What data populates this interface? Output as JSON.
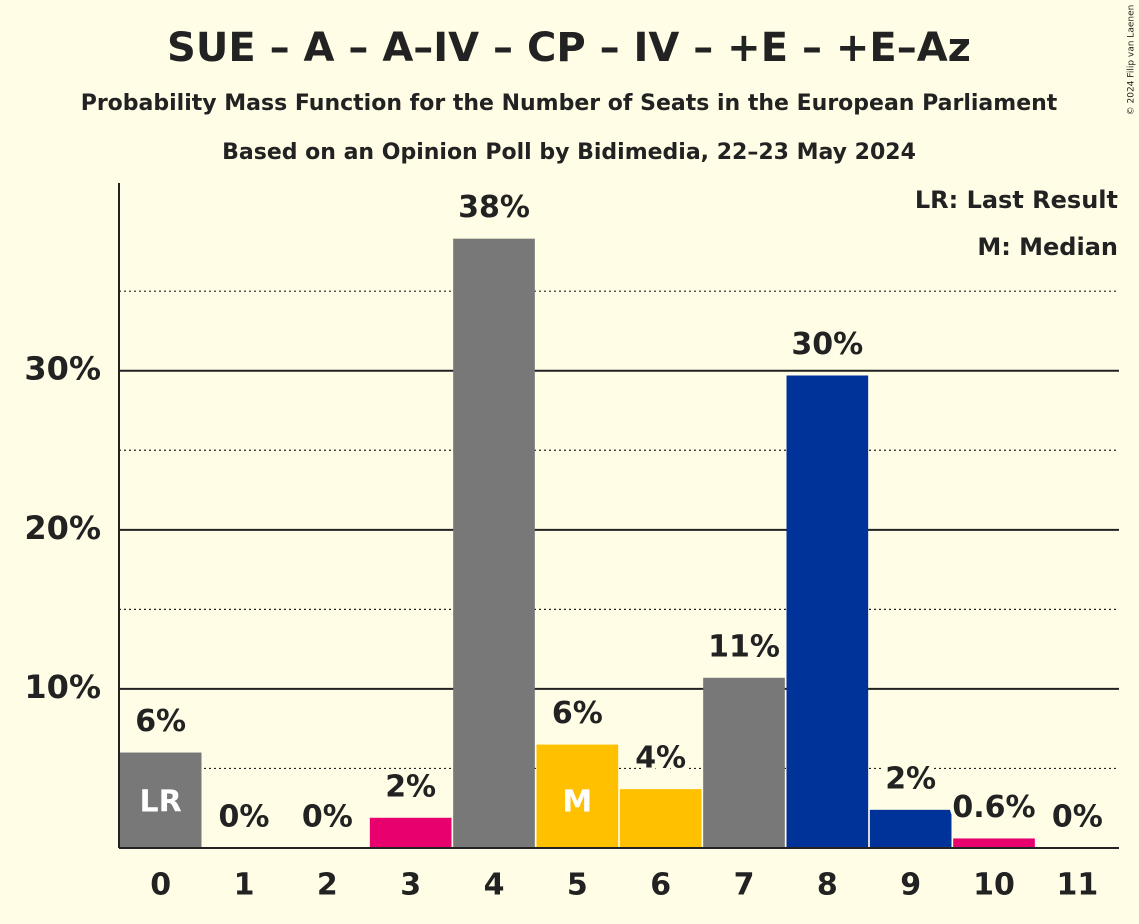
{
  "chart_data": {
    "type": "bar",
    "title": "SUE – A – A–IV – CP – IV – +E – +E–Az",
    "subtitle": "Probability Mass Function for the Number of Seats in the European Parliament",
    "subtitle2": "Based on an Opinion Poll by Bidimedia, 22–23 May 2024",
    "copyright": "© 2024 Filip van Laenen",
    "legend": [
      "LR: Last Result",
      "M: Median"
    ],
    "legend_position": "top-right",
    "categories": [
      "0",
      "1",
      "2",
      "3",
      "4",
      "5",
      "6",
      "7",
      "8",
      "9",
      "10",
      "11"
    ],
    "values": [
      6.0,
      0,
      0,
      1.9,
      38.3,
      6.5,
      3.7,
      10.7,
      29.7,
      2.4,
      0.6,
      0
    ],
    "value_labels": [
      "6%",
      "0%",
      "0%",
      "2%",
      "38%",
      "6%",
      "4%",
      "11%",
      "30%",
      "2%",
      "0.6%",
      "0%"
    ],
    "colors": [
      "#787878",
      "#787878",
      "#787878",
      "#e9006f",
      "#787878",
      "#ffc000",
      "#ffc000",
      "#787878",
      "#003399",
      "#003399",
      "#e9006f",
      "#787878"
    ],
    "bar_labels": [
      "LR",
      null,
      null,
      null,
      null,
      "M",
      null,
      null,
      null,
      null,
      null,
      null
    ],
    "ylim": [
      0,
      41.8
    ],
    "yticks": [
      {
        "value": 10,
        "label": "10%"
      },
      {
        "value": 20,
        "label": "20%"
      },
      {
        "value": 30,
        "label": "30%"
      }
    ],
    "minor_yticks": [
      5,
      15,
      25,
      35
    ],
    "grid": true
  }
}
